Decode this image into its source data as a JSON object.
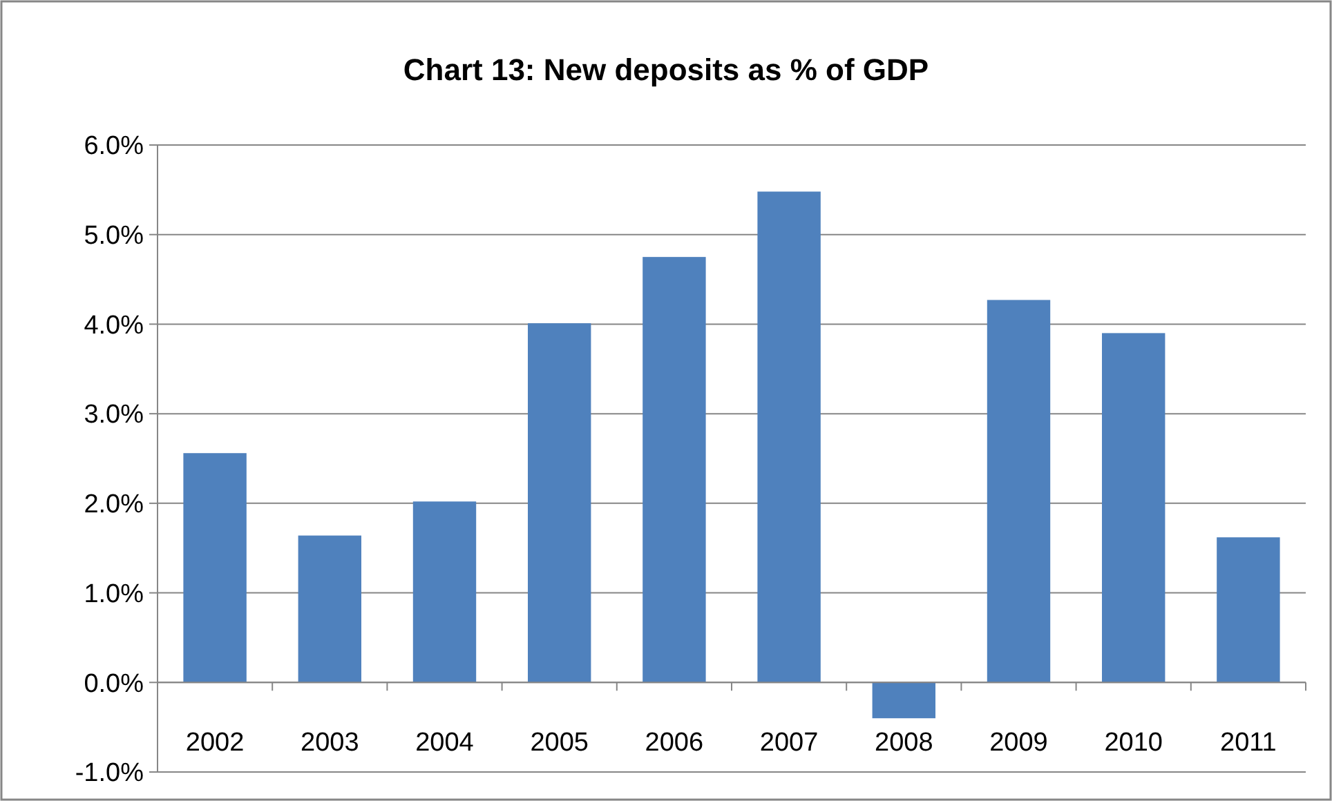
{
  "chart_data": {
    "type": "bar",
    "title": "Chart 13: New deposits as % of GDP",
    "categories": [
      "2002",
      "2003",
      "2004",
      "2005",
      "2006",
      "2007",
      "2008",
      "2009",
      "2010",
      "2011"
    ],
    "values": [
      2.56,
      1.64,
      2.02,
      4.01,
      4.75,
      5.48,
      -0.4,
      4.27,
      3.9,
      1.62
    ],
    "color": "#4f81bd",
    "ylim": [
      -1,
      6
    ],
    "yticks": [
      {
        "value": -1,
        "label": "-1.0%"
      },
      {
        "value": 0,
        "label": "0.0%"
      },
      {
        "value": 1,
        "label": "1.0%"
      },
      {
        "value": 2,
        "label": "2.0%"
      },
      {
        "value": 3,
        "label": "3.0%"
      },
      {
        "value": 4,
        "label": "4.0%"
      },
      {
        "value": 5,
        "label": "5.0%"
      },
      {
        "value": 6,
        "label": "6.0%"
      }
    ],
    "grid": true
  }
}
